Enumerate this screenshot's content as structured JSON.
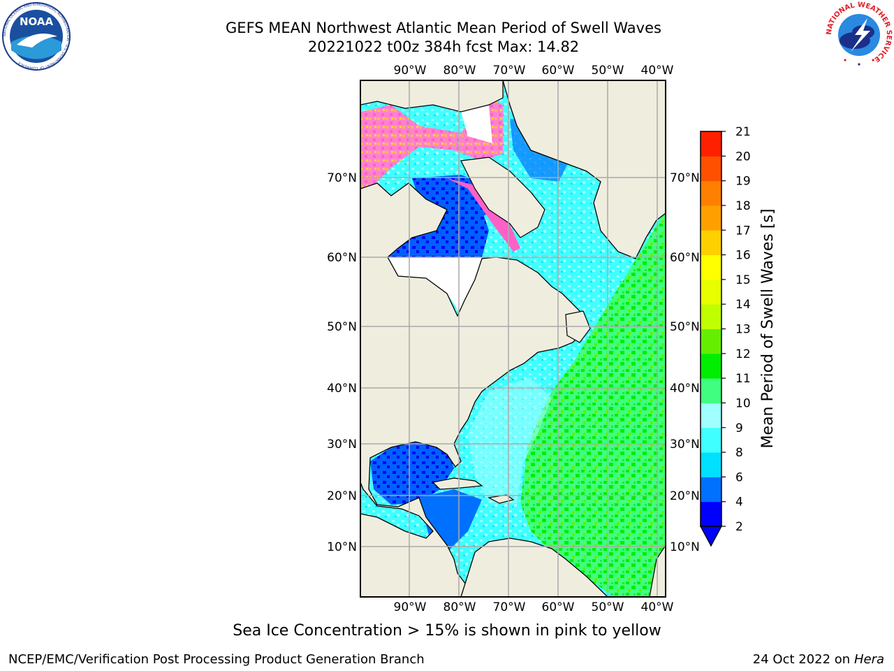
{
  "header": {
    "title_line1": "GEFS MEAN Northwest Atlantic Mean Period of Swell Waves",
    "title_line2": "20221022 t00z 384h fcst   Max: 14.82"
  },
  "logos": {
    "left": {
      "name": "NOAA",
      "ring_text": "NATIONAL OCEANIC AND ATMOSPHERIC ADMINISTRATION · U.S. DEPARTMENT OF COMMERCE"
    },
    "right": {
      "ring_text": "NATIONAL WEATHER SERVICE"
    }
  },
  "map": {
    "lon_labels": [
      "90°W",
      "80°W",
      "70°W",
      "60°W",
      "50°W",
      "40°W"
    ],
    "lat_labels": [
      "70°N",
      "60°N",
      "50°N",
      "40°N",
      "30°N",
      "20°N",
      "10°N"
    ],
    "colors": {
      "land": "#efedde",
      "ice": "#ffffff",
      "grid": "#aaaaaa"
    }
  },
  "colorbar": {
    "label": "Mean Period of Swell Waves [s]",
    "ticks": [
      "2",
      "4",
      "6",
      "8",
      "9",
      "10",
      "11",
      "12",
      "13",
      "14",
      "15",
      "16",
      "17",
      "18",
      "19",
      "20",
      "21"
    ],
    "colors": [
      "#0000ff",
      "#0070ff",
      "#00e0ff",
      "#40ffff",
      "#a0ffff",
      "#40ff80",
      "#00ee00",
      "#66ee00",
      "#c0ff00",
      "#e8ff00",
      "#ffff00",
      "#ffd000",
      "#ffa000",
      "#ff8000",
      "#ff5000",
      "#ff2000"
    ]
  },
  "note": "Sea Ice Concentration > 15% is shown in pink to yellow",
  "footer": {
    "left": "NCEP/EMC/Verification Post Processing Product Generation Branch",
    "right_prefix": "24 Oct 2022 on ",
    "right_italic": "Hera"
  }
}
